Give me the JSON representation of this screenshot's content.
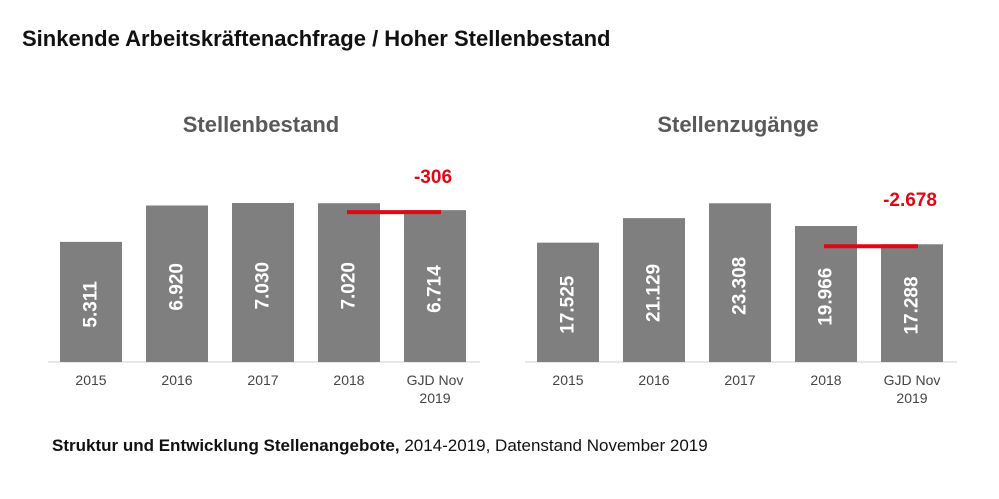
{
  "page_title": "Sinkende Arbeitskräftenachfrage / Hoher Stellenbestand",
  "caption": {
    "bold": "Struktur und Entwicklung Stellenangebote,",
    "rest": " 2014-2019, Datenstand November 2019"
  },
  "colors": {
    "bar": "#7f7f7f",
    "accent": "#e30613"
  },
  "chart_data": [
    {
      "type": "bar",
      "title": "Stellenbestand",
      "categories": [
        "2015",
        "2016",
        "2017",
        "2018",
        "GJD Nov 2019"
      ],
      "values": [
        5311,
        6920,
        7030,
        7020,
        6714
      ],
      "value_labels": [
        "5.311",
        "6.920",
        "7.030",
        "7.020",
        "6.714"
      ],
      "ylim": [
        0,
        8400
      ],
      "grid": false,
      "annotation": {
        "text": "-306",
        "from_category": "2018",
        "to_category": "GJD Nov 2019"
      }
    },
    {
      "type": "bar",
      "title": "Stellenzugänge",
      "categories": [
        "2015",
        "2016",
        "2017",
        "2018",
        "GJD Nov 2019"
      ],
      "values": [
        17525,
        21129,
        23308,
        19966,
        17288
      ],
      "value_labels": [
        "17.525",
        "21.129",
        "23.308",
        "19.966",
        "17.288"
      ],
      "ylim": [
        0,
        27900
      ],
      "grid": false,
      "annotation": {
        "text": "-2.678",
        "from_category": "2018",
        "to_category": "GJD Nov 2019"
      }
    }
  ]
}
